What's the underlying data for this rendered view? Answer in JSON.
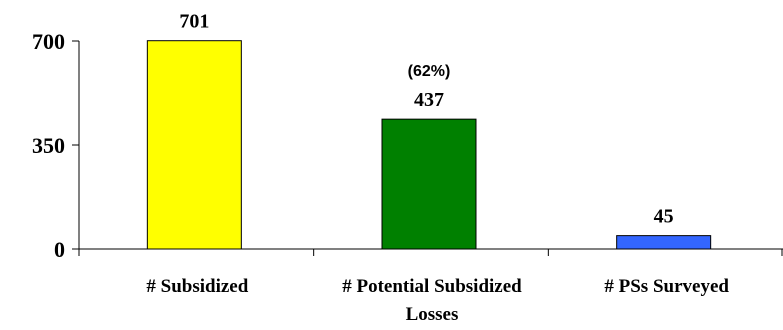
{
  "chart_data": {
    "type": "bar",
    "categories": [
      [
        "# Subsidized"
      ],
      [
        "# Potential Subsidized",
        "Losses"
      ],
      [
        "# PSs Surveyed"
      ]
    ],
    "values": [
      701,
      437,
      45
    ],
    "value_labels": [
      "701",
      "437",
      "45"
    ],
    "colors": [
      "#ffff00",
      "#008000",
      "#3366ff"
    ],
    "annotations": [
      {
        "category_index": 1,
        "text": "(62%)"
      }
    ],
    "yticks": [
      0,
      350,
      700
    ],
    "ylim": [
      0,
      700
    ],
    "title": "",
    "xlabel": "",
    "ylabel": "",
    "grid": false,
    "legend": "none"
  }
}
